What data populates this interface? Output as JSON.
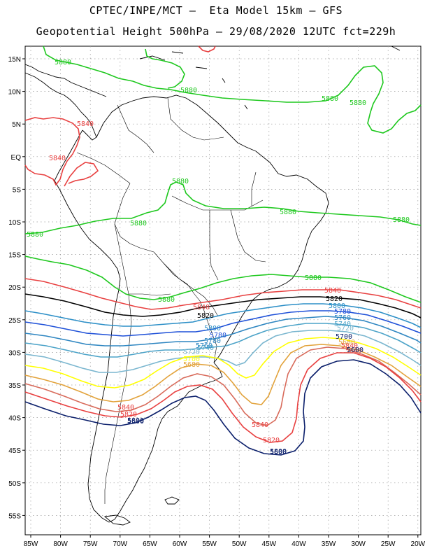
{
  "title_line1": "CPTEC/INPE/MCT –  Eta Model 15km – GFS",
  "title_line2": "Geopotential Height 500hPa – 29/08/2020 12UTC fct=229h",
  "lat_labels": [
    "15N",
    "10N",
    "5N",
    "EQ",
    "5S",
    "10S",
    "15S",
    "20S",
    "25S",
    "30S",
    "35S",
    "40S",
    "45S",
    "50S",
    "55S"
  ],
  "lon_labels": [
    "85W",
    "80W",
    "75W",
    "70W",
    "65W",
    "60W",
    "55W",
    "50W",
    "45W",
    "40W",
    "35W",
    "30W",
    "25W",
    "20W"
  ],
  "contour_colors": {
    "c5880": "#1ec81e",
    "c5840": "#e84040",
    "c5820": "#000000",
    "c5800": "#2c8fc7",
    "c5780": "#1e50d8",
    "c5760": "#2e86c1",
    "c5740": "#4ca3c8",
    "c5720": "#7ab6cf",
    "c5700": "#ffff00",
    "c5680": "#e2a23a",
    "c5660": "#d86a5a",
    "c5600": "#0b1f6b"
  },
  "contour_labels": {
    "l5880_a": "5880",
    "l5880_b": "5880",
    "l5880_c": "5880",
    "l5880_d": "5880",
    "l5880_e": "5880",
    "l5880_f": "5880",
    "l5880_g": "5880",
    "l5880_h": "5880",
    "l5880_i": "5880",
    "l5880_j": "5880",
    "l5880_k": "5880",
    "l5840_a": "5840",
    "l5840_b": "5840",
    "l5840_c": "5840",
    "l5840_d": "5840",
    "l5840_e": "5840",
    "l5840_f": "5840",
    "l5840_g": "5840",
    "l5820_a": "5820",
    "l5820_b": "5820",
    "l5820_c": "5820",
    "l5820_d": "5820",
    "l5800_a": "5800",
    "l5800_b": "5800",
    "l5800_c": "5800",
    "l5800_d": "5800",
    "l5780_a": "5780",
    "l5780_b": "5780",
    "l5780_c": "5780",
    "l5760_a": "5760",
    "l5760_b": "5760",
    "l5740_a": "5740",
    "l5740_b": "5740",
    "l5720_a": "5720",
    "l5720_b": "5720",
    "l5700_a": "5700",
    "l5700_b": "5700",
    "l5680_a": "5680",
    "l5680_b": "5680",
    "l5660_a": "5660",
    "l5600_a": "5600",
    "l5600_b": "5600",
    "l5600_c": "5600"
  }
}
